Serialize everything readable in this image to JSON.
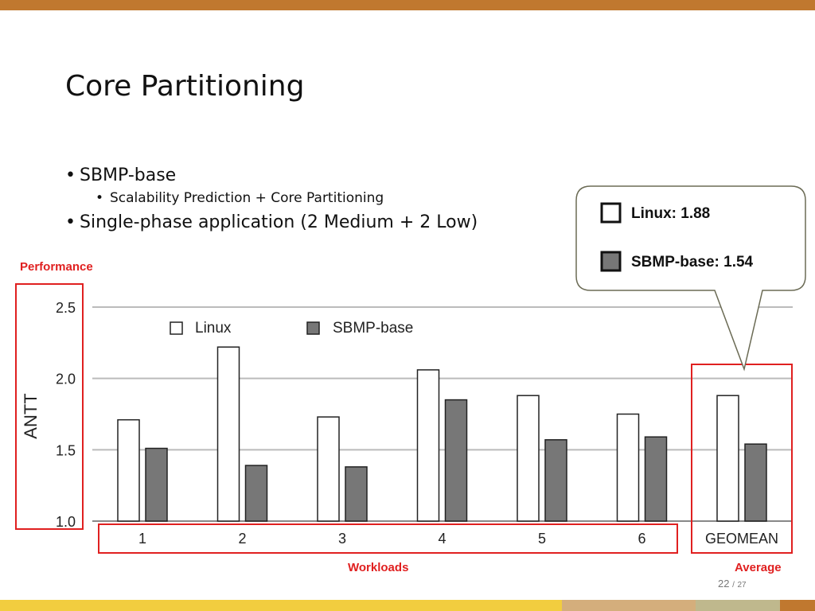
{
  "slide": {
    "title": "Core Partitioning",
    "bullets": [
      {
        "level": 1,
        "text": "SBMP-base"
      },
      {
        "level": 2,
        "text": "Scalability Prediction + Core Partitioning"
      },
      {
        "level": 1,
        "text": "Single-phase application (2 Medium + 2 Low)"
      }
    ],
    "bullet_glyph": "•",
    "annotations": {
      "performance": "Performance",
      "workloads": "Workloads",
      "average": "Average"
    },
    "callout": {
      "items": [
        {
          "label": "Linux: 1.88",
          "color": "#ffffff"
        },
        {
          "label": "SBMP-base: 1.54",
          "color": "#777777"
        }
      ]
    },
    "page": {
      "current": "22",
      "separator": "/",
      "total": "27"
    },
    "colors": {
      "accent": "#c0782f",
      "highlight": "#e02020"
    }
  },
  "chart_data": {
    "type": "bar",
    "categories": [
      "1",
      "2",
      "3",
      "4",
      "5",
      "6",
      "GEOMEAN"
    ],
    "series": [
      {
        "name": "Linux",
        "color": "#ffffff",
        "values": [
          1.71,
          2.22,
          1.73,
          2.06,
          1.88,
          1.75,
          1.88
        ]
      },
      {
        "name": "SBMP-base",
        "color": "#777777",
        "values": [
          1.51,
          1.39,
          1.38,
          1.85,
          1.57,
          1.59,
          1.54
        ]
      }
    ],
    "title": "",
    "xlabel": "",
    "ylabel": "ANTT",
    "ylim": [
      1.0,
      2.5
    ],
    "yticks": [
      "1.0",
      "1.5",
      "2.0",
      "2.5"
    ],
    "grid": true,
    "legend": "top-left"
  }
}
